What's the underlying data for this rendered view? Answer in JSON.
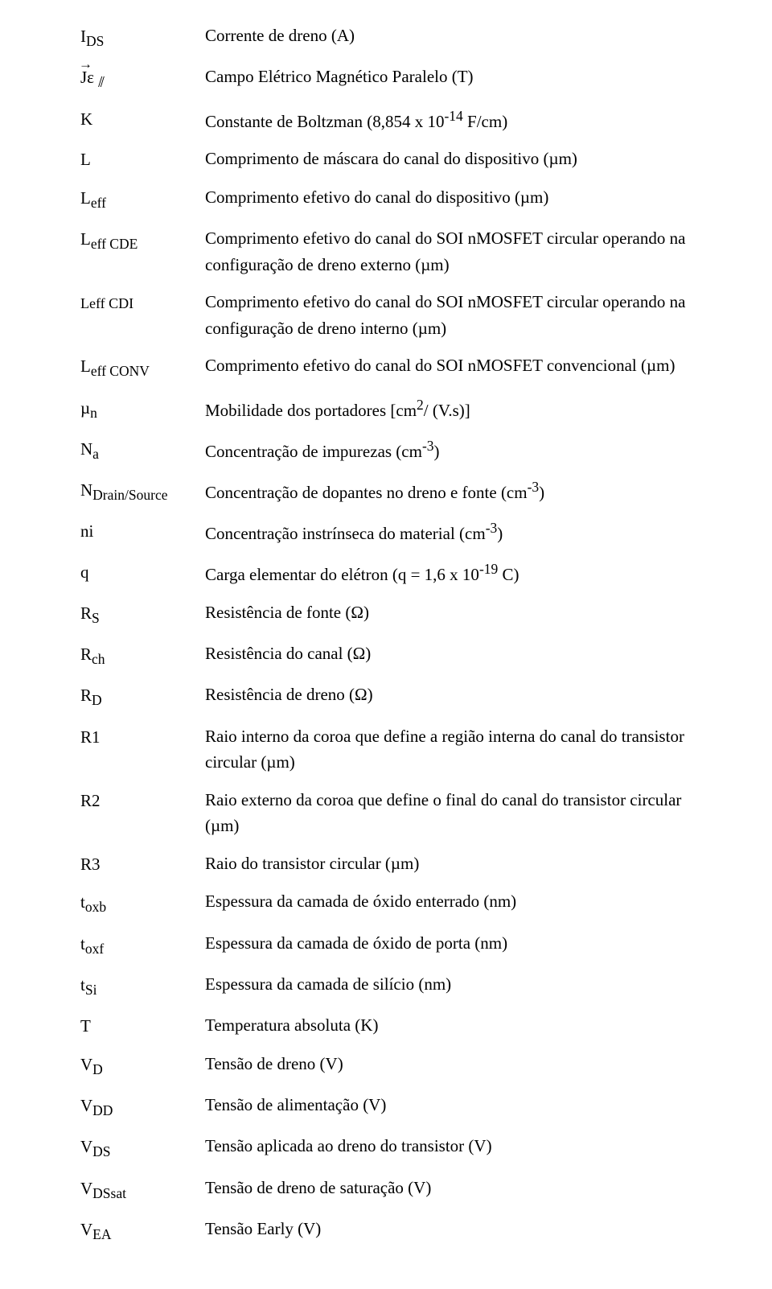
{
  "text_color": "#000000",
  "background_color": "#ffffff",
  "font_family": "Times New Roman",
  "base_fontsize_pt": 16,
  "rows": [
    {
      "sym_html": "I<sub>DS</sub>",
      "desc_html": "Corrente de dreno (A)"
    },
    {
      "sym_html": "<span class=\"arrow-over\">Jε</span> <sub>⫽</sub>",
      "desc_html": "Campo Elétrico Magnético Paralelo (T)"
    },
    {
      "sym_html": "K",
      "desc_html": "Constante de Boltzman (8,854 x 10<sup>-14</sup> F/cm)"
    },
    {
      "sym_html": "L",
      "desc_html": "Comprimento de máscara do canal do dispositivo (µm)"
    },
    {
      "sym_html": "L<sub>eff</sub>",
      "desc_html": "Comprimento efetivo do canal do dispositivo (µm)"
    },
    {
      "sym_html": "L<sub>eff CDE</sub>",
      "desc_html": "Comprimento efetivo do canal do SOI nMOSFET circular operando na configuração de dreno externo (µm)"
    },
    {
      "sym_html": "<span style=\"font-size:18px\">Leff CDI</span>",
      "desc_html": "Comprimento efetivo do canal do SOI nMOSFET circular operando na configuração de dreno interno  (µm)"
    },
    {
      "sym_html": "L<sub>eff CONV</sub>",
      "desc_html": "Comprimento efetivo do canal do SOI nMOSFET convencional (µm)"
    },
    {
      "sym_html": "µ<sub>n</sub>",
      "desc_html": "Mobilidade dos portadores [cm<sup>2</sup>/ (V.s)]"
    },
    {
      "sym_html": "N<sub>a</sub>",
      "desc_html": "Concentração de impurezas (cm<sup>-3</sup>)"
    },
    {
      "sym_html": "N<sub>Drain/Source</sub>",
      "desc_html": "Concentração de dopantes no dreno e fonte (cm<sup>-3</sup>)"
    },
    {
      "sym_html": "ni",
      "desc_html": "Concentração instrínseca do material (cm<sup>-3</sup>)"
    },
    {
      "sym_html": "q",
      "desc_html": "Carga elementar do elétron (q = 1,6 x 10<sup>-19</sup> C)"
    },
    {
      "sym_html": "R<sub>S</sub>",
      "desc_html": "Resistência de fonte (Ω)"
    },
    {
      "sym_html": "R<sub>ch</sub>",
      "desc_html": "Resistência do canal (Ω)"
    },
    {
      "sym_html": "R<sub>D</sub>",
      "desc_html": "Resistência de dreno (Ω)"
    },
    {
      "sym_html": "R1",
      "desc_html": "Raio interno da coroa que define a região interna do canal do transistor circular (µm)"
    },
    {
      "sym_html": "R2",
      "desc_html": "Raio externo da coroa que define o final do canal do transistor circular (µm)"
    },
    {
      "sym_html": "R3",
      "desc_html": "Raio do transistor circular (µm)"
    },
    {
      "sym_html": "t<sub>oxb</sub>",
      "desc_html": "Espessura da camada de óxido enterrado (nm)"
    },
    {
      "sym_html": "t<sub>oxf</sub>",
      "desc_html": "Espessura da camada de óxido de porta (nm)"
    },
    {
      "sym_html": "t<sub>Si</sub>",
      "desc_html": "Espessura da camada de silício (nm)"
    },
    {
      "sym_html": "T",
      "desc_html": "Temperatura absoluta (K)"
    },
    {
      "sym_html": "V<sub>D</sub>",
      "desc_html": "Tensão de dreno (V)"
    },
    {
      "sym_html": "V<sub>DD</sub>",
      "desc_html": "Tensão de alimentação (V)"
    },
    {
      "sym_html": "V<sub>DS</sub>",
      "desc_html": "Tensão aplicada ao dreno do transistor (V)"
    },
    {
      "sym_html": "V<sub>DSsat</sub>",
      "desc_html": "Tensão de dreno de saturação (V)"
    },
    {
      "sym_html": "V<sub>EA</sub>",
      "desc_html": "Tensão Early (V)"
    }
  ]
}
